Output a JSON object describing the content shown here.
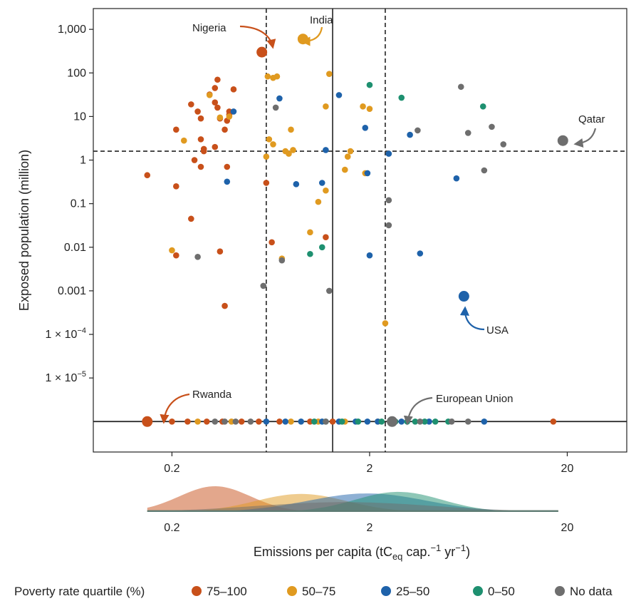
{
  "chart_data": {
    "type": "scatter",
    "x_scale": "log",
    "y_scale": "log",
    "xlabel": "Emissions per capita (tCeq cap.−1 yr−1)",
    "xlabel_parts": {
      "pre": "Emissions per capita (tC",
      "sub": "eq",
      "mid1": " cap.",
      "sup1": "−1",
      "mid2": " yr",
      "sup2": "−1",
      "post": ")"
    },
    "ylabel": "Exposed population (million)",
    "xlim": [
      0.08,
      40
    ],
    "ylim": [
      2e-07,
      3000
    ],
    "x_ticks": [
      {
        "value": 0.2,
        "label": "0.2"
      },
      {
        "value": 2,
        "label": "2"
      },
      {
        "value": 20,
        "label": "20"
      }
    ],
    "y_ticks": [
      {
        "value": 1000,
        "label": "1,000"
      },
      {
        "value": 100,
        "label": "100"
      },
      {
        "value": 10,
        "label": "10"
      },
      {
        "value": 1,
        "label": "1"
      },
      {
        "value": 0.1,
        "label": "0.1"
      },
      {
        "value": 0.01,
        "label": "0.01"
      },
      {
        "value": 0.001,
        "label": "0.001"
      },
      {
        "value": 0.0001,
        "label": "1 × 10",
        "sup": "−4"
      },
      {
        "value": 1e-05,
        "label": "1 × 10",
        "sup": "−5"
      }
    ],
    "reference_lines": {
      "vertical_dashed": [
        0.6,
        2.4
      ],
      "vertical_solid": [
        1.3
      ],
      "horizontal_dashed": [
        1.6
      ],
      "baseline_solid": 1e-06
    },
    "colors": {
      "75–100": "#c8501a",
      "50–75": "#e09a20",
      "25–50": "#1e62aa",
      "0–50": "#1e9070",
      "No data": "#6e6e6e"
    },
    "legend": {
      "title": "Poverty rate quartile (%)",
      "entries": [
        "75–100",
        "50–75",
        "25–50",
        "0–50",
        "No data"
      ],
      "placement": "bottom"
    },
    "highlighted": [
      {
        "label": "Nigeria",
        "x": 0.57,
        "y": 300,
        "group": "75–100"
      },
      {
        "label": "India",
        "x": 0.92,
        "y": 600,
        "group": "50–75"
      },
      {
        "label": "Qatar",
        "x": 19,
        "y": 2.8,
        "group": "No data"
      },
      {
        "label": "USA",
        "x": 6.0,
        "y": 0.00075,
        "group": "25–50"
      },
      {
        "label": "Rwanda",
        "x": 0.15,
        "y": 1e-06,
        "group": "75–100"
      },
      {
        "label": "European Union",
        "x": 2.6,
        "y": 1e-06,
        "group": "No data"
      }
    ],
    "series": [
      {
        "name": "75–100",
        "points": [
          [
            0.15,
            0.45
          ],
          [
            0.21,
            0.25
          ],
          [
            0.21,
            5
          ],
          [
            0.25,
            0.045
          ],
          [
            0.25,
            19
          ],
          [
            0.27,
            13
          ],
          [
            0.28,
            9
          ],
          [
            0.28,
            3
          ],
          [
            0.29,
            1.6
          ],
          [
            0.28,
            0.7
          ],
          [
            0.26,
            1
          ],
          [
            0.29,
            1.8
          ],
          [
            0.31,
            32
          ],
          [
            0.33,
            45
          ],
          [
            0.33,
            21
          ],
          [
            0.34,
            16
          ],
          [
            0.33,
            2
          ],
          [
            0.35,
            9
          ],
          [
            0.34,
            70
          ],
          [
            0.37,
            5
          ],
          [
            0.38,
            8
          ],
          [
            0.39,
            11
          ],
          [
            0.39,
            13
          ],
          [
            0.38,
            0.7
          ],
          [
            0.37,
            0.00045
          ],
          [
            0.41,
            42
          ],
          [
            0.35,
            0.008
          ],
          [
            0.21,
            0.0065
          ],
          [
            0.6,
            0.3
          ],
          [
            0.64,
            0.013
          ],
          [
            1.2,
            0.017
          ],
          [
            17,
            1e-06
          ],
          [
            0.2,
            1e-06
          ],
          [
            0.24,
            1e-06
          ],
          [
            0.3,
            1e-06
          ],
          [
            0.36,
            1e-06
          ],
          [
            0.45,
            1e-06
          ],
          [
            0.55,
            1e-06
          ],
          [
            0.7,
            1e-06
          ],
          [
            1.0,
            1e-06
          ],
          [
            1.3,
            1e-06
          ]
        ]
      },
      {
        "name": "50–75",
        "points": [
          [
            0.23,
            2.8
          ],
          [
            0.2,
            0.0085
          ],
          [
            0.31,
            31
          ],
          [
            0.35,
            9.5
          ],
          [
            0.39,
            10
          ],
          [
            0.61,
            83
          ],
          [
            0.65,
            77
          ],
          [
            0.68,
            83
          ],
          [
            0.6,
            1.2
          ],
          [
            0.62,
            3
          ],
          [
            0.65,
            2.3
          ],
          [
            0.75,
            1.6
          ],
          [
            0.78,
            1.4
          ],
          [
            0.8,
            5
          ],
          [
            0.82,
            1.7
          ],
          [
            1.1,
            0.11
          ],
          [
            1.2,
            17
          ],
          [
            1.2,
            0.2
          ],
          [
            1.25,
            95
          ],
          [
            1.6,
            1.6
          ],
          [
            1.55,
            1.2
          ],
          [
            1.5,
            0.6
          ],
          [
            1.85,
            17
          ],
          [
            1.9,
            0.5
          ],
          [
            2.0,
            15
          ],
          [
            0.72,
            0.0055
          ],
          [
            1.0,
            0.022
          ],
          [
            2.4,
            0.00018
          ],
          [
            0.27,
            1e-06
          ],
          [
            0.4,
            1e-06
          ],
          [
            0.8,
            1e-06
          ],
          [
            1.1,
            1e-06
          ],
          [
            1.5,
            1e-06
          ],
          [
            2.2,
            1e-06
          ]
        ]
      },
      {
        "name": "25–50",
        "points": [
          [
            0.41,
            13
          ],
          [
            0.38,
            0.32
          ],
          [
            0.7,
            26
          ],
          [
            0.85,
            0.28
          ],
          [
            1.15,
            0.3
          ],
          [
            1.2,
            1.7
          ],
          [
            1.4,
            31
          ],
          [
            1.9,
            5.5
          ],
          [
            1.95,
            0.5
          ],
          [
            2.0,
            0.0065
          ],
          [
            2.5,
            1.4
          ],
          [
            3.2,
            3.8
          ],
          [
            3.6,
            0.0072
          ],
          [
            5.5,
            0.38
          ],
          [
            0.6,
            1e-06
          ],
          [
            0.75,
            1e-06
          ],
          [
            0.9,
            1e-06
          ],
          [
            1.15,
            1e-06
          ],
          [
            1.4,
            1e-06
          ],
          [
            1.7,
            1e-06
          ],
          [
            1.95,
            1e-06
          ],
          [
            2.2,
            1e-06
          ],
          [
            2.9,
            1e-06
          ],
          [
            4.0,
            1e-06
          ],
          [
            7.6,
            1e-06
          ]
        ]
      },
      {
        "name": "0–50",
        "points": [
          [
            1.0,
            0.007
          ],
          [
            1.15,
            0.01
          ],
          [
            2.0,
            53
          ],
          [
            2.9,
            27
          ],
          [
            7.5,
            17
          ],
          [
            1.05,
            1e-06
          ],
          [
            1.2,
            1e-06
          ],
          [
            1.45,
            1e-06
          ],
          [
            1.75,
            1e-06
          ],
          [
            2.3,
            1e-06
          ],
          [
            2.7,
            1e-06
          ],
          [
            3.1,
            1e-06
          ],
          [
            3.4,
            1e-06
          ],
          [
            3.8,
            1e-06
          ],
          [
            4.3,
            1e-06
          ],
          [
            5.0,
            1e-06
          ]
        ]
      },
      {
        "name": "No data",
        "points": [
          [
            0.27,
            0.006
          ],
          [
            0.58,
            0.0013
          ],
          [
            0.67,
            16
          ],
          [
            0.72,
            0.005
          ],
          [
            1.25,
            0.001
          ],
          [
            2.5,
            0.12
          ],
          [
            2.5,
            0.032
          ],
          [
            3.5,
            4.8
          ],
          [
            5.8,
            48
          ],
          [
            6.3,
            4.2
          ],
          [
            8.3,
            5.8
          ],
          [
            9.5,
            2.3
          ],
          [
            7.6,
            0.58
          ],
          [
            0.33,
            1e-06
          ],
          [
            0.37,
            1e-06
          ],
          [
            0.42,
            1e-06
          ],
          [
            0.5,
            1e-06
          ],
          [
            1.2,
            1e-06
          ],
          [
            3.6,
            1e-06
          ],
          [
            5.2,
            1e-06
          ],
          [
            6.3,
            1e-06
          ]
        ]
      }
    ],
    "density": [
      {
        "name": "75–100",
        "center": 0.33,
        "spread": 0.18,
        "height": 1.0
      },
      {
        "name": "50–75",
        "center": 0.9,
        "spread": 0.23,
        "height": 0.7
      },
      {
        "name": "25–50",
        "center": 1.95,
        "spread": 0.3,
        "height": 0.72
      },
      {
        "name": "0–50",
        "center": 2.8,
        "spread": 0.22,
        "height": 0.78
      },
      {
        "name": "No data",
        "center": 1.5,
        "spread": 0.45,
        "height": 0.38
      }
    ]
  }
}
